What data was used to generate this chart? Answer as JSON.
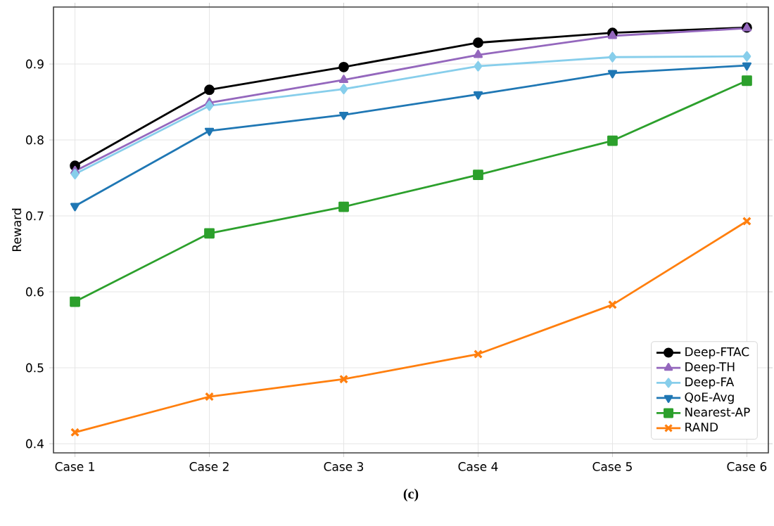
{
  "chart_data": {
    "type": "line",
    "ylabel": "Reward",
    "categories": [
      "Case 1",
      "Case 2",
      "Case 3",
      "Case 4",
      "Case 5",
      "Case 6"
    ],
    "series": [
      {
        "name": "Deep-FTAC",
        "color": "#000000",
        "marker": "circle",
        "values": [
          0.766,
          0.866,
          0.896,
          0.928,
          0.941,
          0.948
        ]
      },
      {
        "name": "Deep-TH",
        "color": "#9467bd",
        "marker": "triangle",
        "values": [
          0.759,
          0.849,
          0.879,
          0.912,
          0.937,
          0.947
        ]
      },
      {
        "name": "Deep-FA",
        "color": "#87ceeb",
        "marker": "diamond",
        "values": [
          0.755,
          0.845,
          0.867,
          0.897,
          0.909,
          0.91
        ]
      },
      {
        "name": "QoE-Avg",
        "color": "#1f77b4",
        "marker": "triangle_down",
        "values": [
          0.713,
          0.812,
          0.833,
          0.86,
          0.888,
          0.898
        ]
      },
      {
        "name": "Nearest-AP",
        "color": "#2ca02c",
        "marker": "square",
        "values": [
          0.587,
          0.677,
          0.712,
          0.754,
          0.799,
          0.878
        ]
      },
      {
        "name": "RAND",
        "color": "#ff7f0e",
        "marker": "cross",
        "values": [
          0.415,
          0.462,
          0.485,
          0.518,
          0.583,
          0.693
        ]
      }
    ],
    "ylim": [
      0.388,
      0.975
    ],
    "yticks": [
      0.4,
      0.5,
      0.6,
      0.7,
      0.8,
      0.9
    ],
    "grid": true,
    "legend": "bottom right",
    "line_style": "solid",
    "annotations": [
      "(c)"
    ]
  }
}
